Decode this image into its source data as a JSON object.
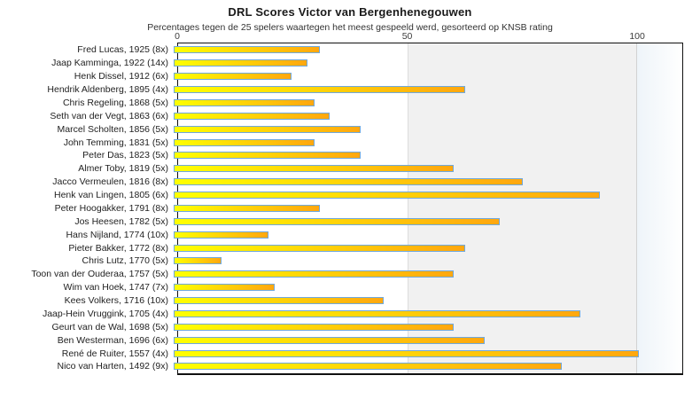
{
  "title": "DRL Scores Victor van Bergenhenegouwen",
  "subtitle": "Percentages tegen de 25 spelers waartegen het meest gespeeld werd, gesorteerd op KNSB rating",
  "axis": {
    "ticks": [
      {
        "label": "0",
        "value": 0
      },
      {
        "label": "50",
        "value": 50
      },
      {
        "label": "100",
        "value": 100
      }
    ],
    "max": 110
  },
  "colors": {
    "bar_gradient_start": "#ffff00",
    "bar_gradient_end": "#ffa70f",
    "bar_border": "#6fa8dc",
    "band_50_100": "#f1f1f1",
    "plot_border": "#111111"
  },
  "chart_data": {
    "type": "bar",
    "orientation": "horizontal",
    "title": "DRL Scores Victor van Bergenhenegouwen",
    "subtitle": "Percentages tegen de 25 spelers waartegen het meest gespeeld werd, gesorteerd op KNSB rating",
    "xlabel": "",
    "ylabel": "",
    "xlim": [
      0,
      110
    ],
    "grid": "vertical at 50 and 100, shaded band 50-100",
    "legend": "none",
    "categories": [
      "Fred Lucas, 1925 (8x)",
      "Jaap Kamminga, 1922 (14x)",
      "Henk Dissel, 1912 (6x)",
      "Hendrik Aldenberg, 1895 (4x)",
      "Chris Regeling, 1868 (5x)",
      "Seth van der Vegt, 1863 (6x)",
      "Marcel Scholten, 1856 (5x)",
      "John Temming, 1831 (5x)",
      "Peter Das, 1823 (5x)",
      "Almer Toby, 1819 (5x)",
      "Jacco Vermeulen, 1816 (8x)",
      "Henk van Lingen, 1805 (6x)",
      "Peter Hoogakker, 1791 (8x)",
      "Jos Heesen, 1782 (5x)",
      "Hans Nijland, 1774 (10x)",
      "Pieter Bakker, 1772 (8x)",
      "Chris Lutz, 1770 (5x)",
      "Toon van der Ouderaa, 1757 (5x)",
      "Wim van Hoek, 1747 (7x)",
      "Kees Volkers, 1716 (10x)",
      "Jaap-Hein Vruggink, 1705 (4x)",
      "Geurt van de Wal, 1698 (5x)",
      "Ben Westerman, 1696 (6x)",
      "René de Ruiter, 1557 (4x)",
      "Nico van Harten, 1492 (9x)"
    ],
    "values": [
      31.25,
      28.57,
      25,
      62.5,
      30,
      33.33,
      40,
      30,
      40,
      60,
      75,
      91.67,
      31.25,
      70,
      20,
      62.5,
      10,
      60,
      21.43,
      45,
      87.5,
      60,
      66.67,
      100,
      83.33
    ]
  }
}
